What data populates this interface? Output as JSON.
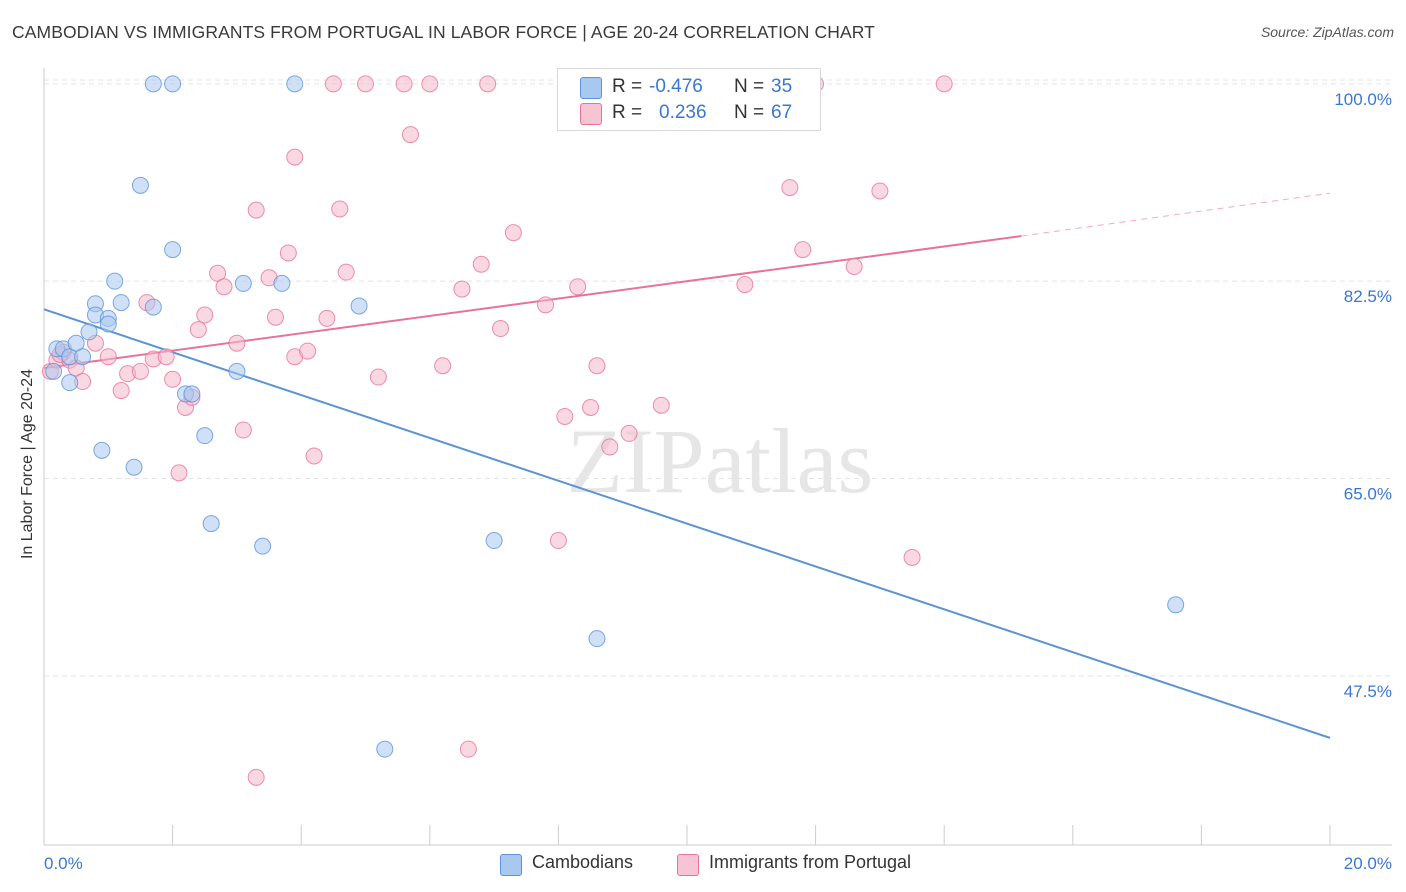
{
  "title": "CAMBODIAN VS IMMIGRANTS FROM PORTUGAL IN LABOR FORCE | AGE 20-24 CORRELATION CHART",
  "source": "Source: ZipAtlas.com",
  "watermark": "ZIPatlas",
  "legend": {
    "rows": [
      {
        "r_label": "R =",
        "r_value": "-0.476",
        "n_label": "N =",
        "n_value": "35",
        "color": "#a9c8f0"
      },
      {
        "r_label": "R =",
        "r_value": "0.236",
        "n_label": "N =",
        "n_value": "67",
        "color": "#f6b8cb"
      }
    ]
  },
  "chart_data": {
    "type": "scatter",
    "xlabel": "",
    "ylabel": "In Labor Force | Age 20-24",
    "xlim": [
      0,
      20
    ],
    "ylim": [
      32.5,
      103
    ],
    "x_tick_labels": [
      "0.0%",
      "20.0%"
    ],
    "y_tick_values": [
      47.5,
      65.0,
      82.5,
      100.0
    ],
    "y_tick_labels": [
      "47.5%",
      "65.0%",
      "82.5%",
      "100.0%"
    ],
    "grid": true,
    "legend_position": "bottom",
    "series": [
      {
        "name": "Cambodians",
        "color": "#5b93db",
        "fill": "#a9c8f0",
        "trend": {
          "x": [
            0.0,
            20.0
          ],
          "y": [
            80.0,
            42.0
          ]
        },
        "points": [
          [
            0.2,
            76.5
          ],
          [
            0.3,
            76.5
          ],
          [
            0.4,
            75.8
          ],
          [
            0.4,
            73.5
          ],
          [
            0.5,
            77.0
          ],
          [
            0.7,
            78.0
          ],
          [
            0.8,
            80.5
          ],
          [
            0.8,
            79.5
          ],
          [
            0.9,
            67.5
          ],
          [
            1.0,
            79.2
          ],
          [
            1.1,
            82.5
          ],
          [
            1.2,
            80.6
          ],
          [
            1.4,
            66.0
          ],
          [
            1.5,
            91.0
          ],
          [
            1.7,
            100.0
          ],
          [
            1.7,
            80.2
          ],
          [
            2.0,
            100.0
          ],
          [
            2.0,
            85.3
          ],
          [
            2.2,
            72.5
          ],
          [
            2.3,
            72.5
          ],
          [
            2.5,
            68.8
          ],
          [
            2.6,
            61.0
          ],
          [
            3.0,
            74.5
          ],
          [
            3.1,
            82.3
          ],
          [
            3.4,
            59.0
          ],
          [
            3.7,
            82.3
          ],
          [
            3.9,
            100.0
          ],
          [
            4.9,
            80.3
          ],
          [
            5.3,
            41.0
          ],
          [
            7.0,
            59.5
          ],
          [
            8.6,
            50.8
          ],
          [
            17.6,
            53.8
          ],
          [
            0.6,
            75.8
          ],
          [
            1.0,
            78.7
          ],
          [
            0.15,
            74.5
          ]
        ]
      },
      {
        "name": "Immigrants from Portugal",
        "color": "#e8739a",
        "fill": "#f6b8cb",
        "trend": {
          "x": [
            0.0,
            15.2
          ],
          "y": [
            74.8,
            86.5
          ]
        },
        "trend_dashed": {
          "x": [
            15.2,
            20.0
          ],
          "y": [
            86.5,
            90.3
          ]
        },
        "points": [
          [
            0.1,
            74.5
          ],
          [
            0.2,
            75.5
          ],
          [
            0.3,
            76.2
          ],
          [
            0.4,
            75.5
          ],
          [
            0.5,
            74.8
          ],
          [
            0.6,
            73.6
          ],
          [
            0.8,
            77.0
          ],
          [
            1.0,
            75.8
          ],
          [
            1.2,
            72.8
          ],
          [
            1.3,
            74.3
          ],
          [
            1.5,
            74.5
          ],
          [
            1.6,
            80.6
          ],
          [
            1.7,
            75.6
          ],
          [
            1.9,
            75.8
          ],
          [
            2.0,
            73.8
          ],
          [
            2.1,
            65.5
          ],
          [
            2.2,
            71.3
          ],
          [
            2.3,
            72.2
          ],
          [
            2.4,
            78.2
          ],
          [
            2.5,
            79.5
          ],
          [
            2.7,
            83.2
          ],
          [
            2.8,
            82.0
          ],
          [
            3.0,
            77.0
          ],
          [
            3.1,
            69.3
          ],
          [
            3.3,
            38.5
          ],
          [
            3.3,
            88.8
          ],
          [
            3.5,
            82.8
          ],
          [
            3.6,
            79.3
          ],
          [
            3.8,
            85.0
          ],
          [
            3.9,
            93.5
          ],
          [
            3.9,
            75.8
          ],
          [
            4.1,
            76.3
          ],
          [
            4.2,
            67.0
          ],
          [
            4.4,
            79.2
          ],
          [
            4.5,
            100.0
          ],
          [
            4.6,
            88.9
          ],
          [
            4.7,
            83.3
          ],
          [
            5.0,
            100.0
          ],
          [
            5.2,
            74.0
          ],
          [
            5.6,
            100.0
          ],
          [
            5.7,
            95.5
          ],
          [
            6.0,
            100.0
          ],
          [
            6.2,
            75.0
          ],
          [
            6.5,
            81.8
          ],
          [
            6.6,
            41.0
          ],
          [
            6.8,
            84.0
          ],
          [
            6.9,
            100.0
          ],
          [
            7.1,
            78.3
          ],
          [
            7.3,
            86.8
          ],
          [
            7.8,
            80.4
          ],
          [
            8.0,
            59.5
          ],
          [
            8.1,
            70.5
          ],
          [
            8.3,
            82.0
          ],
          [
            8.5,
            71.3
          ],
          [
            8.6,
            75.0
          ],
          [
            8.8,
            67.8
          ],
          [
            9.1,
            69.0
          ],
          [
            9.6,
            71.5
          ],
          [
            10.9,
            82.2
          ],
          [
            11.6,
            90.8
          ],
          [
            11.8,
            85.3
          ],
          [
            12.0,
            100.0
          ],
          [
            12.6,
            83.8
          ],
          [
            13.0,
            90.5
          ],
          [
            13.5,
            58.0
          ],
          [
            14.0,
            100.0
          ],
          [
            0.25,
            76.0
          ]
        ]
      }
    ]
  }
}
